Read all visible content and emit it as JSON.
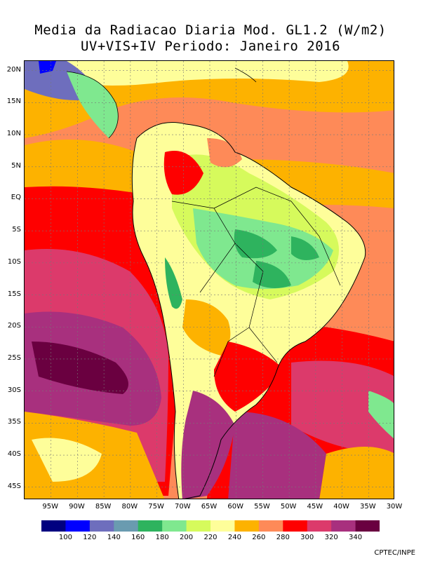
{
  "title_line1": "Media da Radiacao Diaria  Mod. GL1.2 (W/m2)",
  "title_line2": "UV+VIS+IV  Periodo: Janeiro 2016",
  "lat_ticks": [
    "20N",
    "15N",
    "10N",
    "5N",
    "EQ",
    "5S",
    "10S",
    "15S",
    "20S",
    "25S",
    "30S",
    "35S",
    "40S",
    "45S"
  ],
  "lat_values": [
    20,
    15,
    10,
    5,
    0,
    -5,
    -10,
    -15,
    -20,
    -25,
    -30,
    -35,
    -40,
    -45
  ],
  "lon_ticks": [
    "95W",
    "90W",
    "85W",
    "80W",
    "75W",
    "70W",
    "65W",
    "60W",
    "55W",
    "50W",
    "45W",
    "40W",
    "35W",
    "30W"
  ],
  "lon_values": [
    -95,
    -90,
    -85,
    -80,
    -75,
    -70,
    -65,
    -60,
    -55,
    -50,
    -45,
    -40,
    -35,
    -30
  ],
  "extent": {
    "lon_min": -100,
    "lon_max": -30,
    "lat_min": -47,
    "lat_max": 21.5
  },
  "colorbar": {
    "colors": [
      "#000080",
      "#0000ff",
      "#6e6ebd",
      "#6a9bb0",
      "#2eb35e",
      "#7fe88f",
      "#d6fa5c",
      "#fefe9a",
      "#fdb200",
      "#fe8a58",
      "#fe0000",
      "#dc3a6b",
      "#a8307e",
      "#6a0040"
    ],
    "labels": [
      "100",
      "120",
      "140",
      "160",
      "180",
      "200",
      "220",
      "240",
      "260",
      "280",
      "300",
      "320",
      "340"
    ]
  },
  "credit": "CPTEC/INPE"
}
